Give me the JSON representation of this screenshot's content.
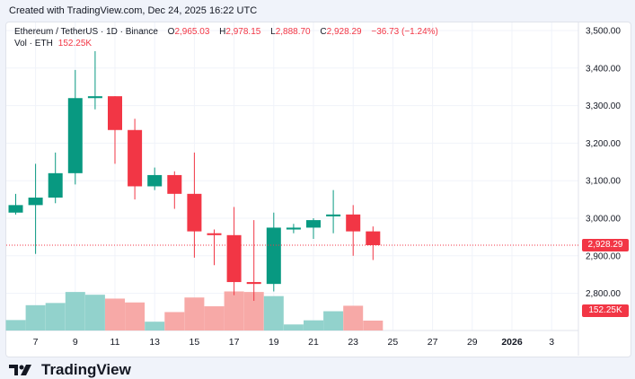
{
  "caption": "Created with TradingView.com, Dec 24, 2025 16:22 UTC",
  "legend": {
    "title": "Ethereum / TetherUS · 1D · Binance",
    "o_label": "O",
    "o_value": "2,965.03",
    "h_label": "H",
    "h_value": "2,978.15",
    "l_label": "L",
    "l_value": "2,888.70",
    "c_label": "C",
    "c_value": "2,928.29",
    "change": "−36.73 (−1.24%)"
  },
  "volume_legend": {
    "label": "Vol · ETH",
    "value": "152.25K"
  },
  "current_price_label": "2,928.29",
  "current_volume_label": "152.25K",
  "brand": "TradingView",
  "colors": {
    "up": "#089981",
    "down": "#f23645",
    "vol_up": "#92d2cc",
    "vol_down": "#f7a9a7"
  },
  "chart_data": {
    "type": "candlestick",
    "x_tick_labels": [
      "7",
      "9",
      "11",
      "13",
      "15",
      "17",
      "19",
      "21",
      "23",
      "25",
      "27",
      "29",
      "2026",
      "3"
    ],
    "y_tick_labels": [
      "3,500.00",
      "3,400.00",
      "3,300.00",
      "3,200.00",
      "3,100.00",
      "3,000.00",
      "2,900.00",
      "2,800.00"
    ],
    "ylim": [
      2760,
      3525
    ],
    "candles": [
      {
        "day": "6",
        "o": 3015,
        "h": 3065,
        "l": 3010,
        "c": 3035
      },
      {
        "day": "7",
        "o": 3035,
        "h": 3145,
        "l": 2905,
        "c": 3055
      },
      {
        "day": "8",
        "o": 3055,
        "h": 3175,
        "l": 3040,
        "c": 3120
      },
      {
        "day": "9",
        "o": 3120,
        "h": 3395,
        "l": 3090,
        "c": 3320
      },
      {
        "day": "10",
        "o": 3320,
        "h": 3445,
        "l": 3290,
        "c": 3325
      },
      {
        "day": "11",
        "o": 3325,
        "h": 3325,
        "l": 3145,
        "c": 3235
      },
      {
        "day": "12",
        "o": 3235,
        "h": 3265,
        "l": 3050,
        "c": 3085
      },
      {
        "day": "13",
        "o": 3085,
        "h": 3135,
        "l": 3075,
        "c": 3115
      },
      {
        "day": "14",
        "o": 3115,
        "h": 3125,
        "l": 3025,
        "c": 3065
      },
      {
        "day": "15",
        "o": 3065,
        "h": 3175,
        "l": 2895,
        "c": 2965
      },
      {
        "day": "16",
        "o": 2960,
        "h": 2970,
        "l": 2875,
        "c": 2955
      },
      {
        "day": "17",
        "o": 2955,
        "h": 3030,
        "l": 2795,
        "c": 2830
      },
      {
        "day": "18",
        "o": 2830,
        "h": 2995,
        "l": 2780,
        "c": 2825
      },
      {
        "day": "19",
        "o": 2825,
        "h": 3015,
        "l": 2805,
        "c": 2975
      },
      {
        "day": "20",
        "o": 2970,
        "h": 2985,
        "l": 2960,
        "c": 2975
      },
      {
        "day": "21",
        "o": 2975,
        "h": 3000,
        "l": 2945,
        "c": 2995
      },
      {
        "day": "22",
        "o": 3005,
        "h": 3075,
        "l": 2960,
        "c": 3010
      },
      {
        "day": "23",
        "o": 3010,
        "h": 3035,
        "l": 2900,
        "c": 2965
      },
      {
        "day": "24",
        "o": 2965.03,
        "h": 2978.15,
        "l": 2888.7,
        "c": 2928.29
      }
    ],
    "volume_relative": [
      0.38,
      0.92,
      1.0,
      1.4,
      1.3,
      1.16,
      1.02,
      0.32,
      0.67,
      1.2,
      0.88,
      1.42,
      1.4,
      1.25,
      0.22,
      0.37,
      0.7,
      0.9,
      0.36
    ],
    "grid": true
  }
}
